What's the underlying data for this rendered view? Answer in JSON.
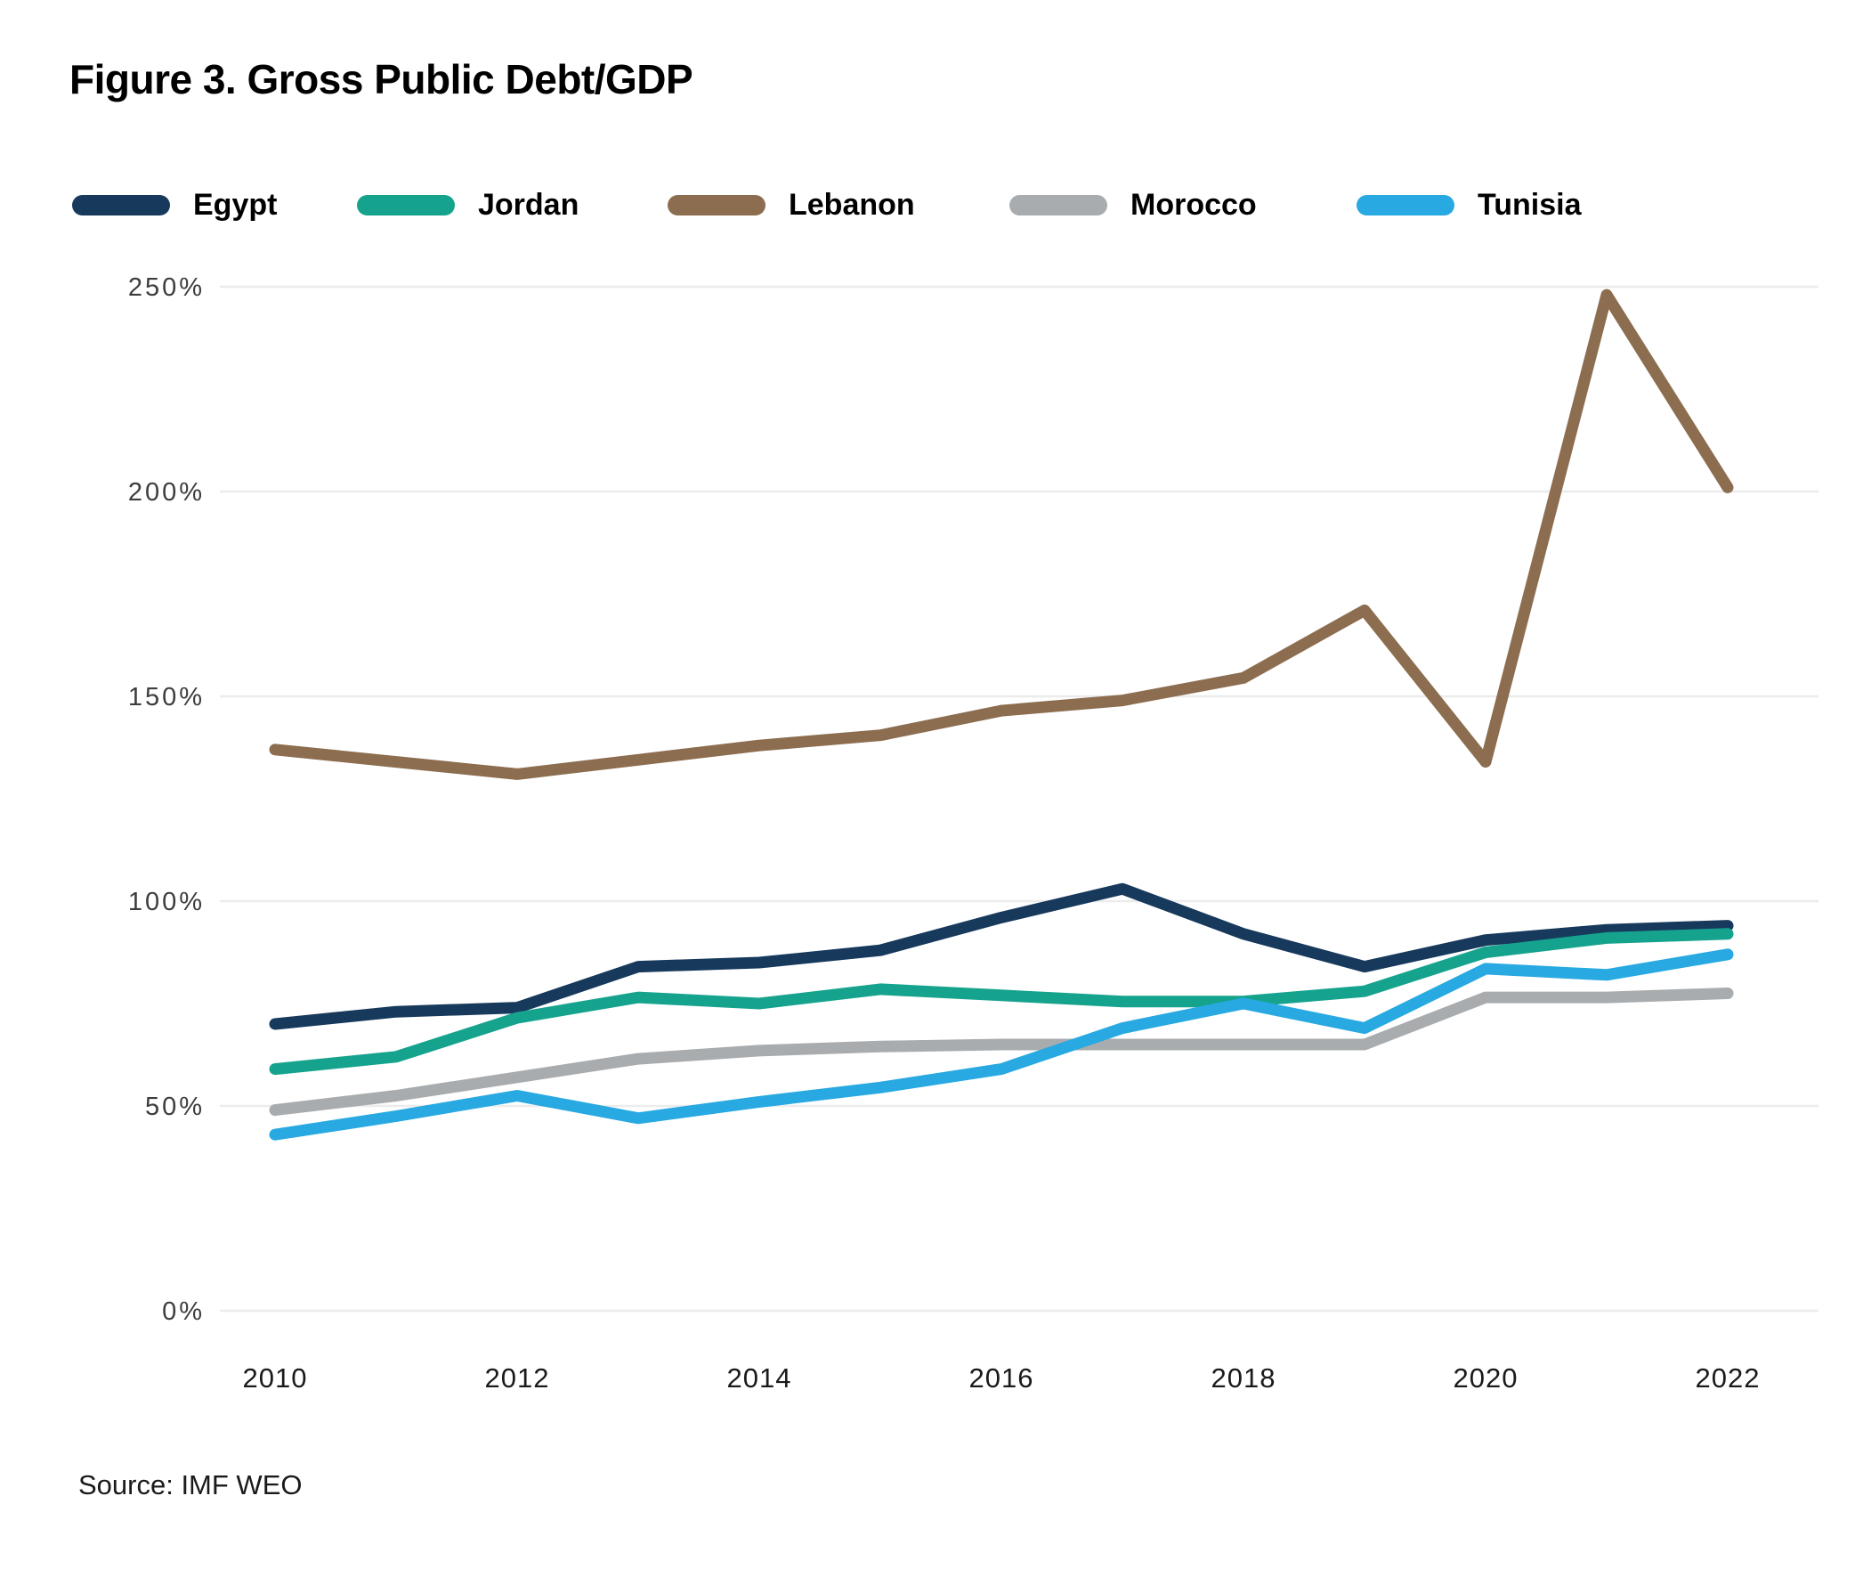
{
  "title": "Figure 3. Gross Public Debt/GDP",
  "source": "Source: IMF WEO",
  "colors": {
    "egypt": "#17395C",
    "jordan": "#16A38E",
    "lebanon": "#8C6D4F",
    "morocco": "#A9ACAE",
    "tunisia": "#28A9E1",
    "gridline": "#ECECEC"
  },
  "legend": [
    {
      "label": "Egypt",
      "color": "#17395C"
    },
    {
      "label": "Jordan",
      "color": "#16A38E"
    },
    {
      "label": "Lebanon",
      "color": "#8C6D4F"
    },
    {
      "label": "Morocco",
      "color": "#A9ACAE"
    },
    {
      "label": "Tunisia",
      "color": "#28A9E1"
    }
  ],
  "chart_data": {
    "type": "line",
    "title": "Figure 3. Gross Public Debt/GDP",
    "x": [
      2010,
      2011,
      2012,
      2013,
      2014,
      2015,
      2016,
      2017,
      2018,
      2019,
      2020,
      2021,
      2022
    ],
    "x_tick_years": [
      2010,
      2012,
      2014,
      2016,
      2018,
      2020,
      2022
    ],
    "x_tick_labels": [
      "2010",
      "2012",
      "2014",
      "2016",
      "2018",
      "2020",
      "2022"
    ],
    "y_ticks": [
      250,
      200,
      150,
      100,
      50,
      0
    ],
    "y_tick_labels": [
      "250%",
      "200%",
      "150%",
      "100%",
      "50%",
      "0%"
    ],
    "ylim": [
      0,
      260
    ],
    "grid": "horizontal",
    "legend_position": "top",
    "units": "percent of GDP",
    "series": [
      {
        "name": "Egypt",
        "color": "#17395C",
        "values": [
          70,
          73,
          74,
          84,
          85,
          88,
          96,
          103,
          92,
          84,
          90.5,
          93,
          94
        ]
      },
      {
        "name": "Jordan",
        "color": "#16A38E",
        "values": [
          59,
          62,
          71.5,
          76.5,
          75,
          78.5,
          77,
          75.5,
          75.5,
          78,
          87.5,
          91,
          92
        ]
      },
      {
        "name": "Lebanon",
        "color": "#8C6D4F",
        "values": [
          137,
          134,
          131,
          134.5,
          138,
          140.5,
          146.5,
          149,
          154.5,
          171,
          134,
          248,
          201
        ]
      },
      {
        "name": "Morocco",
        "color": "#A9ACAE",
        "values": [
          49,
          52.5,
          57,
          61.5,
          63.5,
          64.5,
          65,
          65,
          65,
          65,
          76.5,
          76.5,
          77.5
        ]
      },
      {
        "name": "Tunisia",
        "color": "#28A9E1",
        "values": [
          43,
          47.5,
          52.5,
          47,
          51,
          54.5,
          59,
          69,
          75,
          69,
          83.5,
          82,
          87
        ]
      }
    ]
  }
}
